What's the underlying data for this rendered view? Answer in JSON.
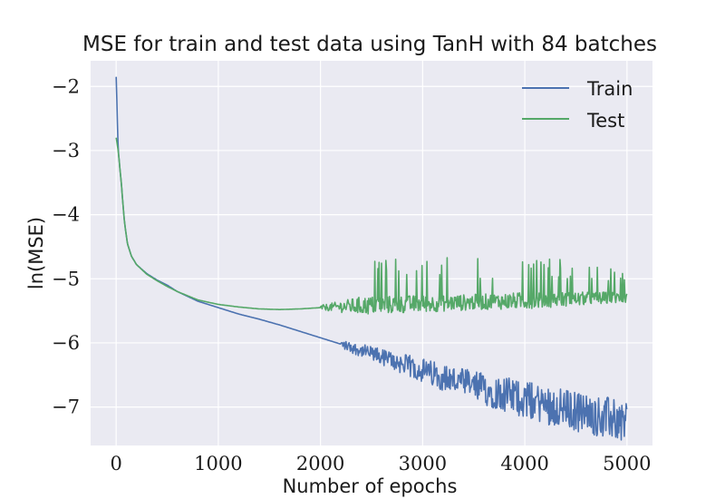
{
  "chart_data": {
    "type": "line",
    "title": "MSE for train and test data using TanH with 84 batches",
    "xlabel": "Number of epochs",
    "ylabel": "ln(MSE)",
    "xlim": [
      -250,
      5250
    ],
    "ylim": [
      -7.6,
      -1.6
    ],
    "xticks": [
      0,
      1000,
      2000,
      3000,
      4000,
      5000
    ],
    "xtick_labels": [
      "0",
      "1000",
      "2000",
      "3000",
      "4000",
      "5000"
    ],
    "yticks": [
      -2,
      -3,
      -4,
      -5,
      -6,
      -7
    ],
    "ytick_labels": [
      "−2",
      "−3",
      "−4",
      "−5",
      "−6",
      "−7"
    ],
    "grid": true,
    "legend_position": "top-right",
    "background": "#eaeaf2",
    "series": [
      {
        "name": "Train",
        "color": "#4c72b0",
        "x": [
          0,
          20,
          50,
          80,
          110,
          150,
          200,
          300,
          400,
          500,
          600,
          800,
          1000,
          1200,
          1400,
          1600,
          1800,
          2000,
          2200,
          2400,
          2600,
          2800,
          3000,
          3200,
          3400,
          3600,
          3800,
          4000,
          4200,
          4400,
          4600,
          4800,
          5000
        ],
        "values": [
          -1.85,
          -3.0,
          -3.5,
          -4.1,
          -4.45,
          -4.65,
          -4.78,
          -4.92,
          -5.02,
          -5.1,
          -5.2,
          -5.35,
          -5.45,
          -5.55,
          -5.63,
          -5.72,
          -5.82,
          -5.92,
          -6.02,
          -6.12,
          -6.22,
          -6.33,
          -6.43,
          -6.53,
          -6.63,
          -6.72,
          -6.8,
          -6.88,
          -6.96,
          -7.03,
          -7.1,
          -7.17,
          -7.22
        ],
        "noise_range": [
          {
            "x": 2200,
            "values": [
              -5.95,
              -6.15
            ]
          },
          {
            "x": 3000,
            "values": [
              -6.05,
              -6.6
            ]
          },
          {
            "x": 4000,
            "values": [
              -6.25,
              -7.1
            ]
          },
          {
            "x": 5000,
            "values": [
              -6.4,
              -7.35
            ]
          }
        ]
      },
      {
        "name": "Test",
        "color": "#55a868",
        "x": [
          0,
          20,
          50,
          80,
          110,
          150,
          200,
          300,
          400,
          500,
          600,
          800,
          1000,
          1200,
          1400,
          1600,
          1800,
          2000,
          2400,
          2800,
          3200,
          3600,
          4000,
          4400,
          4800,
          5000
        ],
        "values": [
          -2.8,
          -3.0,
          -3.5,
          -4.1,
          -4.45,
          -4.65,
          -4.78,
          -4.93,
          -5.03,
          -5.12,
          -5.2,
          -5.33,
          -5.4,
          -5.44,
          -5.47,
          -5.48,
          -5.47,
          -5.45,
          -5.42,
          -5.4,
          -5.38,
          -5.36,
          -5.34,
          -5.32,
          -5.3,
          -5.29
        ],
        "noise_range": [
          {
            "x": 2000,
            "values": [
              -5.25,
              -5.45
            ]
          },
          {
            "x": 2400,
            "values": [
              -4.6,
              -5.42
            ]
          },
          {
            "x": 3500,
            "values": [
              -4.65,
              -5.36
            ]
          },
          {
            "x": 4000,
            "values": [
              -4.6,
              -5.34
            ]
          },
          {
            "x": 5000,
            "values": [
              -4.8,
              -5.3
            ]
          }
        ]
      }
    ]
  }
}
